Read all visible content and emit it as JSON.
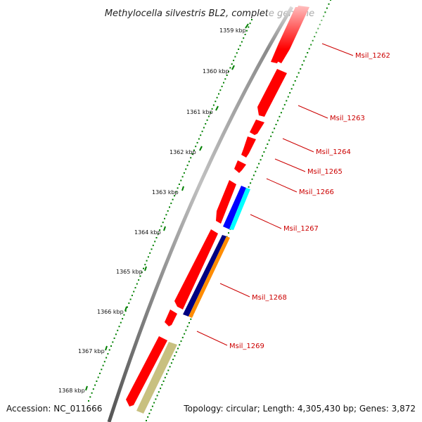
{
  "title": "Methylocella silvestris BL2, complete genome",
  "accession": "Accession: NC_011666",
  "topology": "Topology: circular; Length: 4,305,430 bp; Genes: 3,872",
  "ticks": [
    "1359 kbp",
    "1360 kbp",
    "1361 kbp",
    "1362 kbp",
    "1363 kbp",
    "1364 kbp",
    "1365 kbp",
    "1366 kbp",
    "1367 kbp",
    "1368 kbp"
  ],
  "genes": [
    {
      "label": "Msil_1262"
    },
    {
      "label": "Msil_1263"
    },
    {
      "label": "Msil_1264"
    },
    {
      "label": "Msil_1265"
    },
    {
      "label": "Msil_1266"
    },
    {
      "label": "Msil_1267"
    },
    {
      "label": "Msil_1268"
    },
    {
      "label": "Msil_1269"
    }
  ],
  "colors": {
    "cds": "#ff0000",
    "blue": "#0000ff",
    "cyan": "#00ffff",
    "navy": "#000080",
    "orange": "#ff8c00",
    "khaki": "#c8c080",
    "backbone": "#808080",
    "tick": "#008000",
    "label": "#cc0000"
  }
}
